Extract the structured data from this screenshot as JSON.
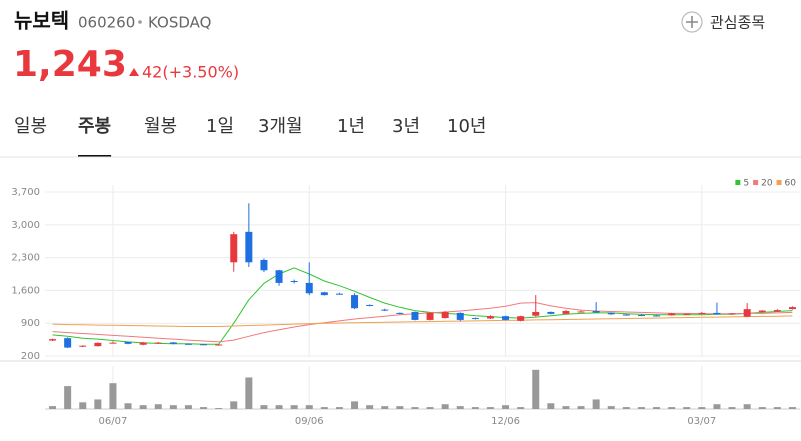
{
  "header": {
    "name": "뉴보텍",
    "code": "060260",
    "market": "KOSDAQ",
    "watch_button": "관심종목",
    "price": "1,243",
    "change": "42(+3.50%)"
  },
  "tabs": [
    "일봉",
    "주봉",
    "월봉",
    "1일",
    "3개월",
    "1년",
    "3년",
    "10년"
  ],
  "selected_tab": 1,
  "chart_data": {
    "type": "candlestick",
    "categories": [
      null,
      null,
      null,
      null,
      "06/07",
      null,
      null,
      null,
      null,
      null,
      null,
      null,
      null,
      null,
      null,
      null,
      null,
      "09/06",
      null,
      null,
      null,
      null,
      null,
      null,
      null,
      null,
      null,
      null,
      null,
      null,
      "12/06",
      null,
      null,
      null,
      null,
      null,
      null,
      null,
      null,
      null,
      null,
      null,
      null,
      "03/07",
      null,
      null,
      null,
      null,
      null,
      null
    ],
    "open": [
      530,
      580,
      400,
      410,
      480,
      500,
      440,
      480,
      490,
      460,
      450,
      440,
      2200,
      2850,
      2250,
      2030,
      1800,
      1760,
      1560,
      1530,
      1500,
      1290,
      1190,
      1120,
      1140,
      970,
      1010,
      1120,
      1010,
      1000,
      1050,
      950,
      1060,
      1140,
      1100,
      1150,
      1160,
      1120,
      1085,
      1075,
      1065,
      1070,
      1100,
      1100,
      1120,
      1090,
      1040,
      1140,
      1150,
      1201
    ],
    "high": [
      570,
      600,
      430,
      490,
      510,
      505,
      500,
      500,
      495,
      470,
      460,
      455,
      2850,
      3460,
      2280,
      2040,
      1830,
      2200,
      1570,
      1550,
      1540,
      1300,
      1210,
      1130,
      1150,
      1130,
      1160,
      1130,
      1020,
      1070,
      1060,
      1060,
      1500,
      1150,
      1180,
      1170,
      1350,
      1130,
      1100,
      1090,
      1080,
      1120,
      1110,
      1140,
      1340,
      1120,
      1330,
      1180,
      1200,
      1260
    ],
    "low": [
      520,
      370,
      390,
      400,
      470,
      450,
      430,
      470,
      450,
      445,
      435,
      430,
      2000,
      2100,
      1990,
      1700,
      1750,
      1500,
      1490,
      1510,
      1200,
      1260,
      1160,
      1090,
      960,
      960,
      1000,
      940,
      980,
      990,
      960,
      940,
      1040,
      1090,
      1090,
      1140,
      1120,
      1080,
      1070,
      1060,
      1050,
      1060,
      1090,
      1090,
      1080,
      1080,
      1030,
      1130,
      1140,
      1190
    ],
    "close": [
      560,
      380,
      420,
      480,
      485,
      460,
      490,
      485,
      460,
      455,
      445,
      445,
      2800,
      2200,
      2030,
      1760,
      1780,
      1540,
      1500,
      1520,
      1220,
      1270,
      1170,
      1100,
      970,
      1120,
      1140,
      970,
      990,
      1050,
      970,
      1050,
      1140,
      1100,
      1160,
      1150,
      1130,
      1090,
      1080,
      1070,
      1060,
      1110,
      1100,
      1120,
      1090,
      1110,
      1200,
      1170,
      1180,
      1243
    ],
    "up_color": "#e8383d",
    "down_color": "#1e6fe0",
    "series": [
      {
        "name": "5",
        "color": "#2ec52e",
        "values": [
          650,
          620,
          580,
          560,
          530,
          500,
          480,
          470,
          460,
          460,
          450,
          450,
          900,
          1400,
          1750,
          1950,
          2080,
          1950,
          1800,
          1700,
          1580,
          1450,
          1330,
          1240,
          1170,
          1130,
          1110,
          1090,
          1060,
          1040,
          1020,
          1010,
          1030,
          1060,
          1090,
          1110,
          1120,
          1120,
          1100,
          1090,
          1080,
          1080,
          1080,
          1080,
          1090,
          1090,
          1110,
          1130,
          1150,
          1170
        ]
      },
      {
        "name": "20",
        "color": "#f07a7a",
        "values": [
          720,
          700,
          680,
          660,
          640,
          620,
          600,
          580,
          560,
          540,
          520,
          500,
          540,
          620,
          700,
          760,
          820,
          870,
          910,
          950,
          990,
          1020,
          1050,
          1080,
          1100,
          1120,
          1140,
          1160,
          1190,
          1220,
          1260,
          1330,
          1340,
          1270,
          1220,
          1180,
          1160,
          1150,
          1140,
          1130,
          1120,
          1110,
          1110,
          1100,
          1100,
          1100,
          1110,
          1110,
          1120,
          1130
        ]
      },
      {
        "name": "60",
        "color": "#f0a050",
        "values": [
          880,
          870,
          865,
          860,
          855,
          850,
          845,
          840,
          835,
          830,
          830,
          830,
          840,
          850,
          860,
          870,
          880,
          890,
          900,
          905,
          910,
          915,
          920,
          925,
          930,
          935,
          940,
          945,
          950,
          955,
          960,
          965,
          970,
          975,
          980,
          985,
          990,
          995,
          1000,
          1005,
          1010,
          1015,
          1020,
          1025,
          1030,
          1035,
          1040,
          1045,
          1050,
          1055
        ]
      }
    ],
    "ylim": [
      200,
      3850
    ],
    "yticks": [
      {
        "value": 3700,
        "label": "3,700"
      },
      {
        "value": 3000,
        "label": "3,000"
      },
      {
        "value": 2300,
        "label": "2,300"
      },
      {
        "value": 1600,
        "label": "1,600"
      },
      {
        "value": 900,
        "label": "900"
      },
      200
    ],
    "grid": true,
    "legend": "top-right",
    "volume": {
      "color": "#999999",
      "ylim": [
        0,
        45
      ],
      "values": [
        3,
        24,
        7,
        10,
        27,
        6,
        4,
        5,
        4,
        4,
        2,
        1,
        8,
        33,
        4,
        4,
        4,
        4,
        2,
        2,
        8,
        4,
        3,
        3,
        2,
        2,
        5,
        3,
        2,
        2,
        4,
        2,
        41,
        6,
        3,
        3,
        10,
        3,
        2,
        2,
        2,
        2,
        2,
        2,
        5,
        2,
        5,
        2,
        2,
        2
      ]
    }
  }
}
